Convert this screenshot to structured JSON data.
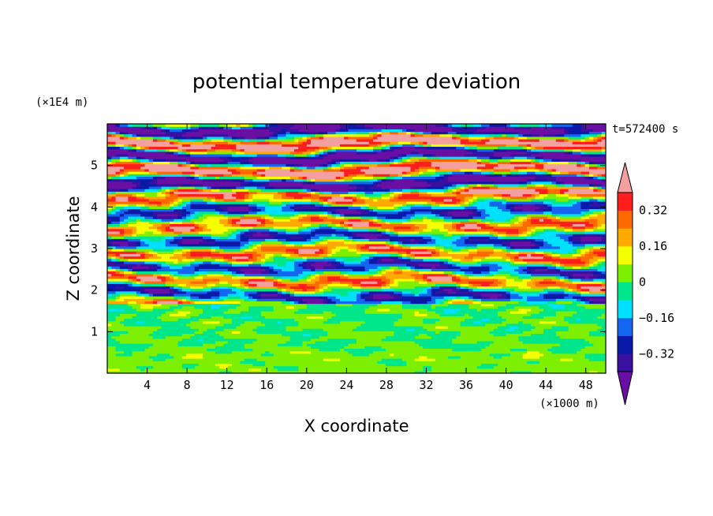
{
  "chart_data": {
    "type": "heatmap",
    "title": "potential temperature deviation",
    "xlabel": "X coordinate",
    "ylabel": "Z coordinate",
    "x_unit": "(×1000 m)",
    "y_unit": "(×1E4 m)",
    "time_label": "t=572400 s",
    "xlim": [
      0,
      50
    ],
    "ylim": [
      0,
      6
    ],
    "x_ticks": [
      4,
      8,
      12,
      16,
      20,
      24,
      28,
      32,
      36,
      40,
      44,
      48
    ],
    "y_ticks": [
      1,
      2,
      3,
      4,
      5
    ],
    "colorbar": {
      "levels": [
        -0.4,
        -0.32,
        -0.24,
        -0.16,
        -0.08,
        0,
        0.08,
        0.16,
        0.24,
        0.32,
        0.4
      ],
      "tick_labels": [
        "0.32",
        "0.16",
        "0",
        "−0.16",
        "−0.32"
      ],
      "tick_values": [
        0.32,
        0.16,
        0,
        -0.16,
        -0.32
      ],
      "extend": "both",
      "colors": [
        "#6a0fa3",
        "#3a10a0",
        "#0a1aa8",
        "#1466f0",
        "#00e0ff",
        "#00e68a",
        "#7cf000",
        "#f5ff00",
        "#ffaa00",
        "#ff6a00",
        "#ff1e1e",
        "#f4a0a0"
      ]
    },
    "field_layers": [
      {
        "z_range": [
          0,
          0.55
        ],
        "character": "light green with green and yellow patches",
        "mean": 0.04
      },
      {
        "z_range": [
          0.55,
          1.7
        ],
        "character": "green with cyan and yellow-green streaks",
        "mean": 0.0
      },
      {
        "z_range": [
          1.7,
          4.3
        ],
        "character": "mixed cyan, blue, green, yellow, orange, red layers",
        "mean": 0.0
      },
      {
        "z_range": [
          4.3,
          6.0
        ],
        "character": "alternating pink and purple bands with red/blue edges",
        "mean": 0.0
      }
    ]
  }
}
